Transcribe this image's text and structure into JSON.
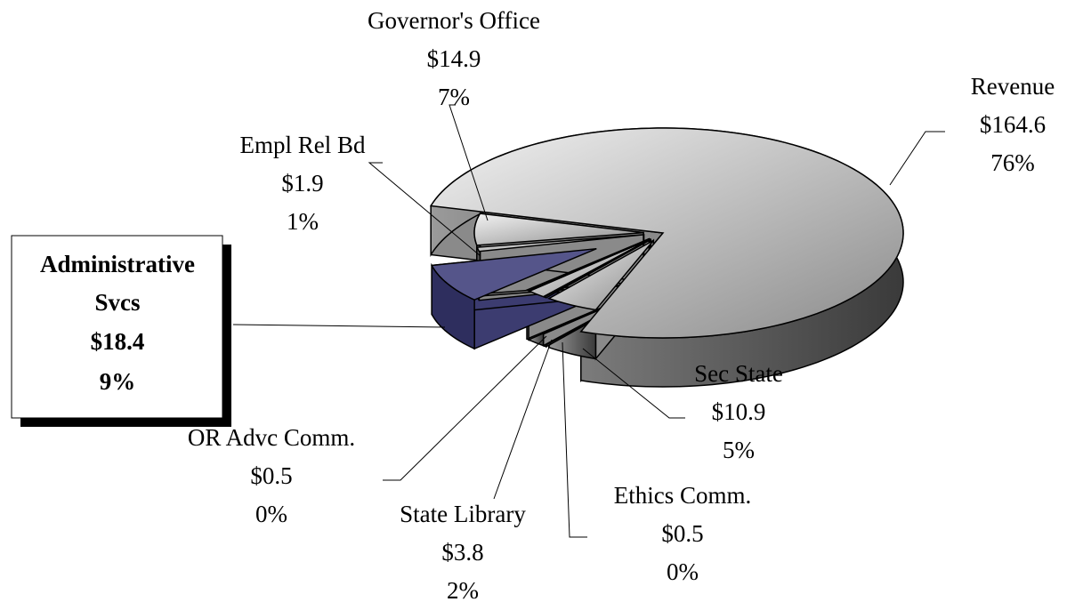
{
  "chart_data": {
    "type": "pie3d",
    "categories": [
      "Revenue",
      "Sec State",
      "Ethics Comm.",
      "State Library",
      "OR Advc Comm.",
      "Administrative Svcs",
      "Empl Rel Bd",
      "Governor's Office"
    ],
    "values": [
      164.6,
      10.9,
      0.5,
      3.8,
      0.5,
      18.4,
      1.9,
      14.9
    ],
    "value_labels": [
      "$164.6",
      "$10.9",
      "$0.5",
      "$3.8",
      "$0.5",
      "$18.4",
      "$1.9",
      "$14.9"
    ],
    "percents": [
      76,
      5,
      0,
      2,
      0,
      9,
      1,
      7
    ],
    "percent_labels": [
      "76%",
      "5%",
      "0%",
      "2%",
      "0%",
      "9%",
      "1%",
      "7%"
    ],
    "colors": [
      "#bdbdbd",
      "#bdbdbd",
      "#bdbdbd",
      "#bdbdbd",
      "#bdbdbd",
      "#55558a",
      "#bdbdbd",
      "#bdbdbd"
    ],
    "highlight": 5
  }
}
